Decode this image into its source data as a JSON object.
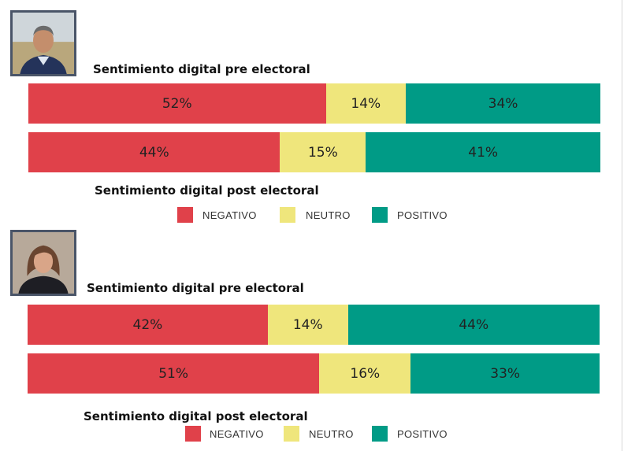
{
  "colors": {
    "negativo": "#e0414a",
    "neutro": "#efe67c",
    "positivo": "#009b86"
  },
  "legend": [
    "NEGATIVO",
    "NEUTRO",
    "POSITIVO"
  ],
  "chart_data": [
    {
      "type": "bar",
      "stacked": true,
      "orientation": "horizontal",
      "candidate_photo": "man-portrait",
      "categories": [
        "Sentimiento digital pre electoral",
        "Sentimiento digital post electoral"
      ],
      "series": [
        {
          "name": "NEGATIVO",
          "values": [
            52,
            44
          ]
        },
        {
          "name": "NEUTRO",
          "values": [
            14,
            15
          ]
        },
        {
          "name": "POSITIVO",
          "values": [
            34,
            41
          ]
        }
      ],
      "labels": [
        [
          "52%",
          "14%",
          "34%"
        ],
        [
          "44%",
          "15%",
          "41%"
        ]
      ],
      "legend_position": "bottom"
    },
    {
      "type": "bar",
      "stacked": true,
      "orientation": "horizontal",
      "candidate_photo": "woman-portrait",
      "categories": [
        "Sentimiento digital pre electoral",
        "Sentimiento digital post electoral"
      ],
      "series": [
        {
          "name": "NEGATIVO",
          "values": [
            42,
            51
          ]
        },
        {
          "name": "NEUTRO",
          "values": [
            14,
            16
          ]
        },
        {
          "name": "POSITIVO",
          "values": [
            44,
            33
          ]
        }
      ],
      "labels": [
        [
          "42%",
          "14%",
          "44%"
        ],
        [
          "51%",
          "16%",
          "33%"
        ]
      ],
      "legend_position": "bottom"
    }
  ]
}
